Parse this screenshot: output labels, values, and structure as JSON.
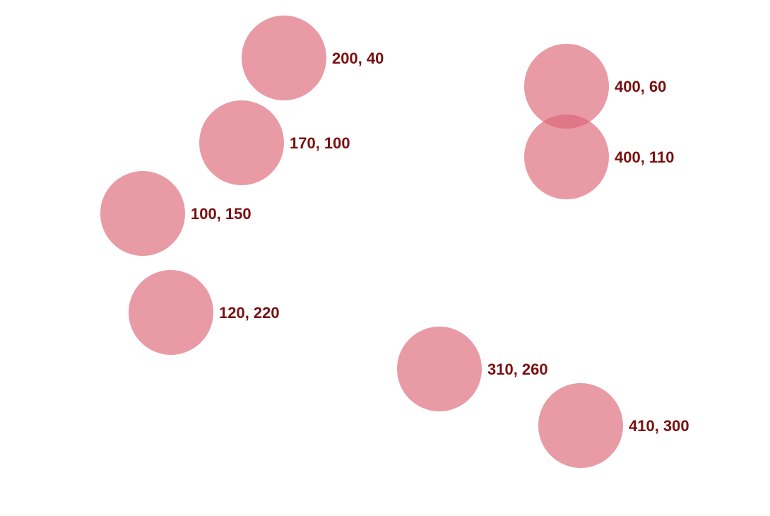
{
  "chart_data": {
    "type": "scatter",
    "title": "",
    "xlabel": "",
    "ylabel": "",
    "grid": false,
    "legend": "none",
    "point_color": "#dc6474",
    "label_color": "#7a1010",
    "points": [
      {
        "x": 200,
        "y": 40,
        "label": "200, 40"
      },
      {
        "x": 400,
        "y": 60,
        "label": "400, 60"
      },
      {
        "x": 170,
        "y": 100,
        "label": "170, 100"
      },
      {
        "x": 400,
        "y": 110,
        "label": "400, 110"
      },
      {
        "x": 100,
        "y": 150,
        "label": "100, 150"
      },
      {
        "x": 120,
        "y": 220,
        "label": "120, 220"
      },
      {
        "x": 310,
        "y": 260,
        "label": "310, 260"
      },
      {
        "x": 410,
        "y": 300,
        "label": "410, 300"
      }
    ]
  }
}
